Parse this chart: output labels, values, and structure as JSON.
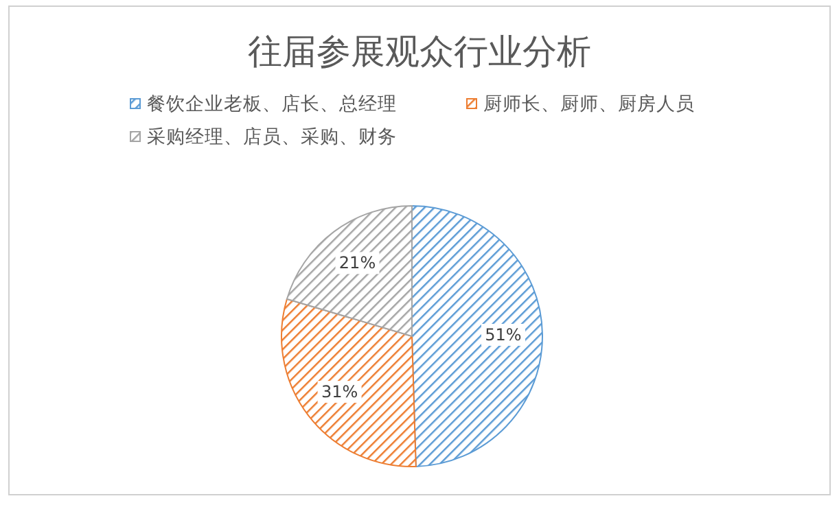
{
  "chart_data": {
    "type": "pie",
    "title": "往届参展观众行业分析",
    "categories": [
      "餐饮企业老板、店长、总经理",
      "厨师长、厨师、厨房人员",
      "采购经理、店员、采购、财务"
    ],
    "values": [
      51,
      31,
      21
    ],
    "colors": [
      "#5b9bd5",
      "#ed7d31",
      "#a5a5a5"
    ],
    "value_labels": [
      "51%",
      "31%",
      "21%"
    ],
    "legend": "top"
  }
}
